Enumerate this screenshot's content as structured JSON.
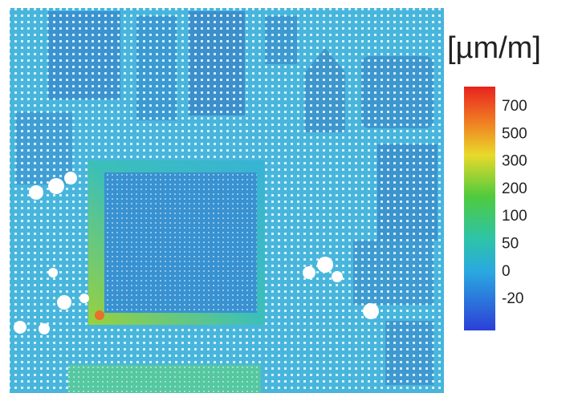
{
  "colorbar": {
    "unit": "[µm/m]",
    "ticks": [
      700,
      500,
      300,
      200,
      100,
      50,
      0,
      -20
    ]
  }
}
